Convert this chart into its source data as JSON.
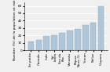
{
  "categories": [
    "Ile petite",
    "Canada",
    "Inde",
    "Sri\nlanka",
    "Iles du\nPac.",
    "Vanuatu",
    "Papua\nNouv.-G.",
    "Yemen",
    "Belize",
    "Guyana"
  ],
  "values": [
    12,
    14,
    19,
    20,
    24,
    27,
    29,
    34,
    37,
    60
  ],
  "bar_color": "#aec6d8",
  "bar_edge_color": "#8aaabf",
  "ylabel": "Nombre (%) de la population at risk (%)",
  "ylim": [
    0,
    65
  ],
  "yticks": [
    0,
    10,
    20,
    30,
    40,
    50,
    60
  ],
  "background_color": "#f0f0f0",
  "grid_color": "#ffffff",
  "tick_fontsize": 3.0,
  "ylabel_fontsize": 3.2
}
